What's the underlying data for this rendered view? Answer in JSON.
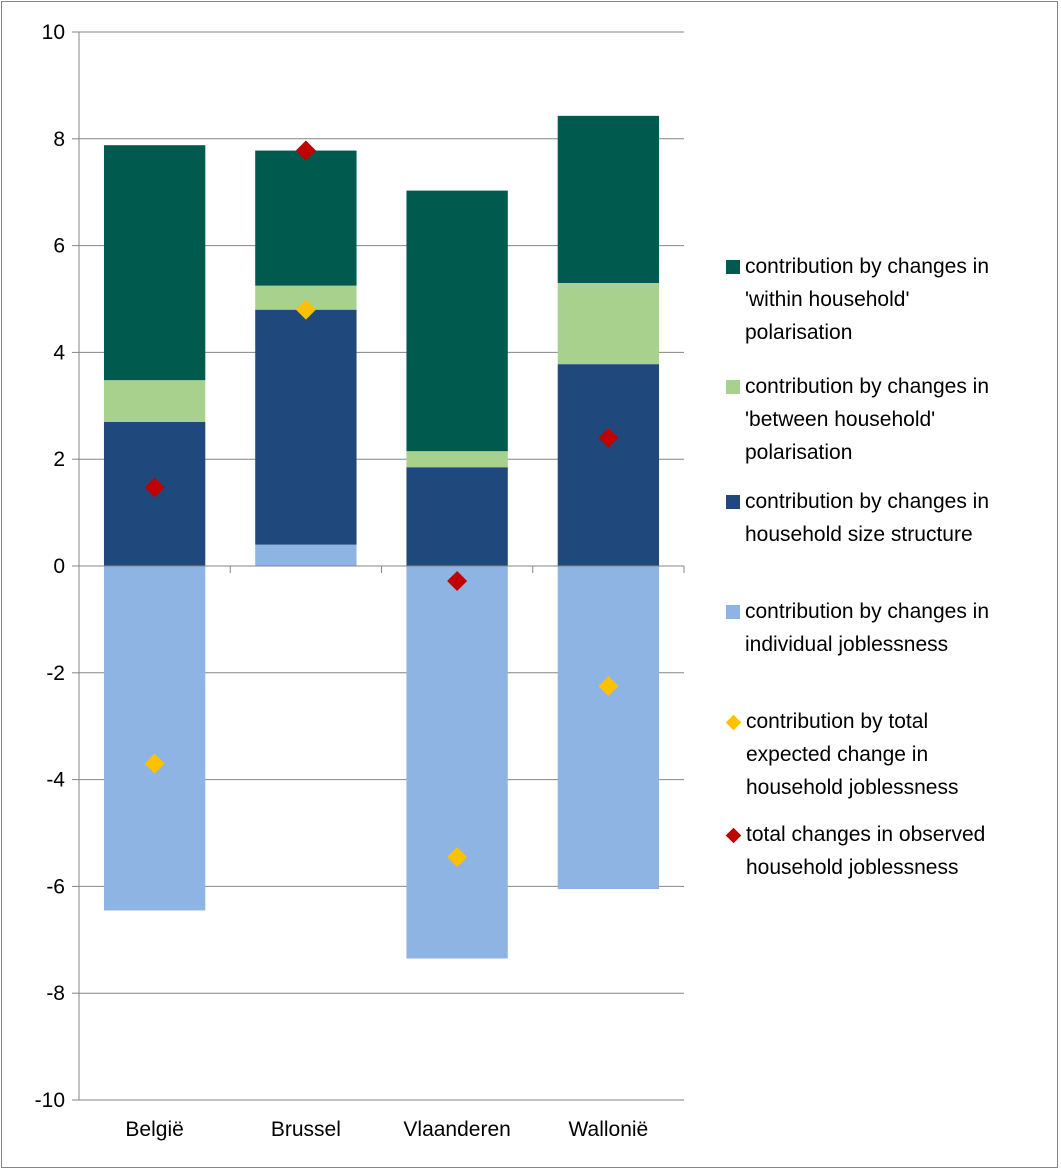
{
  "chart_data": {
    "type": "bar",
    "stacked": true,
    "categories": [
      "België",
      "Brussel",
      "Vlaanderen",
      "Wallonië"
    ],
    "ylim": [
      -10,
      10
    ],
    "yticks": [
      10,
      8,
      6,
      4,
      2,
      0,
      -2,
      -4,
      -6,
      -8,
      -10
    ],
    "ytick_labels": [
      "10",
      "8",
      "6",
      "4",
      "2",
      "0",
      "-2",
      "-4",
      "-6",
      "-8",
      "-10"
    ],
    "grid": true,
    "legend_position": "right",
    "series": [
      {
        "name": "contribution by changes in individual joblessness",
        "kind": "bar",
        "color": "#8eb4e3",
        "values": [
          -6.45,
          0.4,
          -7.35,
          -6.05
        ]
      },
      {
        "name": "contribution by changes in household size structure",
        "kind": "bar",
        "color": "#1f497d",
        "values": [
          2.7,
          4.4,
          1.85,
          3.78
        ]
      },
      {
        "name": "contribution by changes in 'between household' polarisation",
        "kind": "bar",
        "color": "#a9d18e",
        "values": [
          0.78,
          0.45,
          0.3,
          1.52
        ]
      },
      {
        "name": "contribution by changes in 'within household' polarisation",
        "kind": "bar",
        "color": "#005a4e",
        "values": [
          4.4,
          2.53,
          4.88,
          3.13
        ]
      },
      {
        "name": "contribution by total expected change in household joblessness",
        "kind": "marker",
        "color": "#ffc000",
        "values": [
          -3.7,
          4.8,
          -5.45,
          -2.25
        ]
      },
      {
        "name": "total changes in observed household joblessness",
        "kind": "marker",
        "color": "#c00000",
        "values": [
          1.47,
          7.78,
          -0.28,
          2.4
        ]
      }
    ],
    "legend": [
      {
        "label": "contribution by changes in\n'within household'\npolarisation",
        "color": "#005a4e",
        "shape": "square"
      },
      {
        "label": "contribution by changes in\n'between household'\npolarisation",
        "color": "#a9d18e",
        "shape": "square"
      },
      {
        "label": "contribution by changes in\nhousehold size structure",
        "color": "#1f497d",
        "shape": "square"
      },
      {
        "label": "contribution by changes in\nindividual joblessness",
        "color": "#8eb4e3",
        "shape": "square"
      },
      {
        "label": "contribution by total\nexpected change in\nhousehold joblessness",
        "color": "#ffc000",
        "shape": "diamond"
      },
      {
        "label": "total changes in observed\nhousehold joblessness",
        "color": "#c00000",
        "shape": "diamond"
      }
    ]
  }
}
